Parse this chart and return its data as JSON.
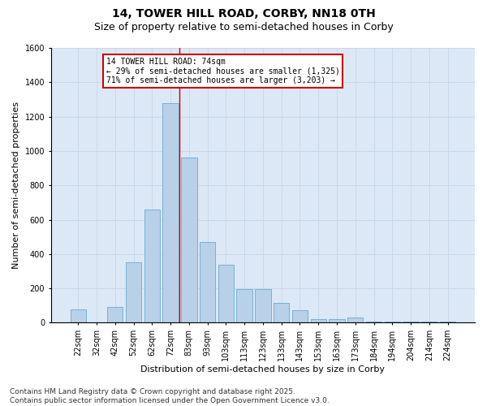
{
  "title_line1": "14, TOWER HILL ROAD, CORBY, NN18 0TH",
  "title_line2": "Size of property relative to semi-detached houses in Corby",
  "xlabel": "Distribution of semi-detached houses by size in Corby",
  "ylabel": "Number of semi-detached properties",
  "categories": [
    "22sqm",
    "32sqm",
    "42sqm",
    "52sqm",
    "62sqm",
    "72sqm",
    "83sqm",
    "93sqm",
    "103sqm",
    "113sqm",
    "123sqm",
    "133sqm",
    "143sqm",
    "153sqm",
    "163sqm",
    "173sqm",
    "184sqm",
    "194sqm",
    "204sqm",
    "214sqm",
    "224sqm"
  ],
  "values": [
    80,
    0,
    90,
    350,
    660,
    1280,
    960,
    470,
    340,
    195,
    195,
    115,
    75,
    20,
    20,
    30,
    5,
    5,
    5,
    5,
    5
  ],
  "bar_color": "#b8d0e8",
  "bar_edge_color": "#6aaad4",
  "vline_color": "#cc0000",
  "annotation_text_line1": "14 TOWER HILL ROAD: 74sqm",
  "annotation_text_line2": "← 29% of semi-detached houses are smaller (1,325)",
  "annotation_text_line3": "71% of semi-detached houses are larger (3,203) →",
  "annotation_box_color": "#cc0000",
  "ylim": [
    0,
    1600
  ],
  "yticks": [
    0,
    200,
    400,
    600,
    800,
    1000,
    1200,
    1400,
    1600
  ],
  "grid_color": "#c8d8ea",
  "background_color": "#dce8f5",
  "footer_text": "Contains HM Land Registry data © Crown copyright and database right 2025.\nContains public sector information licensed under the Open Government Licence v3.0.",
  "title_fontsize": 10,
  "subtitle_fontsize": 9,
  "label_fontsize": 8,
  "tick_fontsize": 7,
  "footer_fontsize": 6.5,
  "annotation_fontsize": 7
}
